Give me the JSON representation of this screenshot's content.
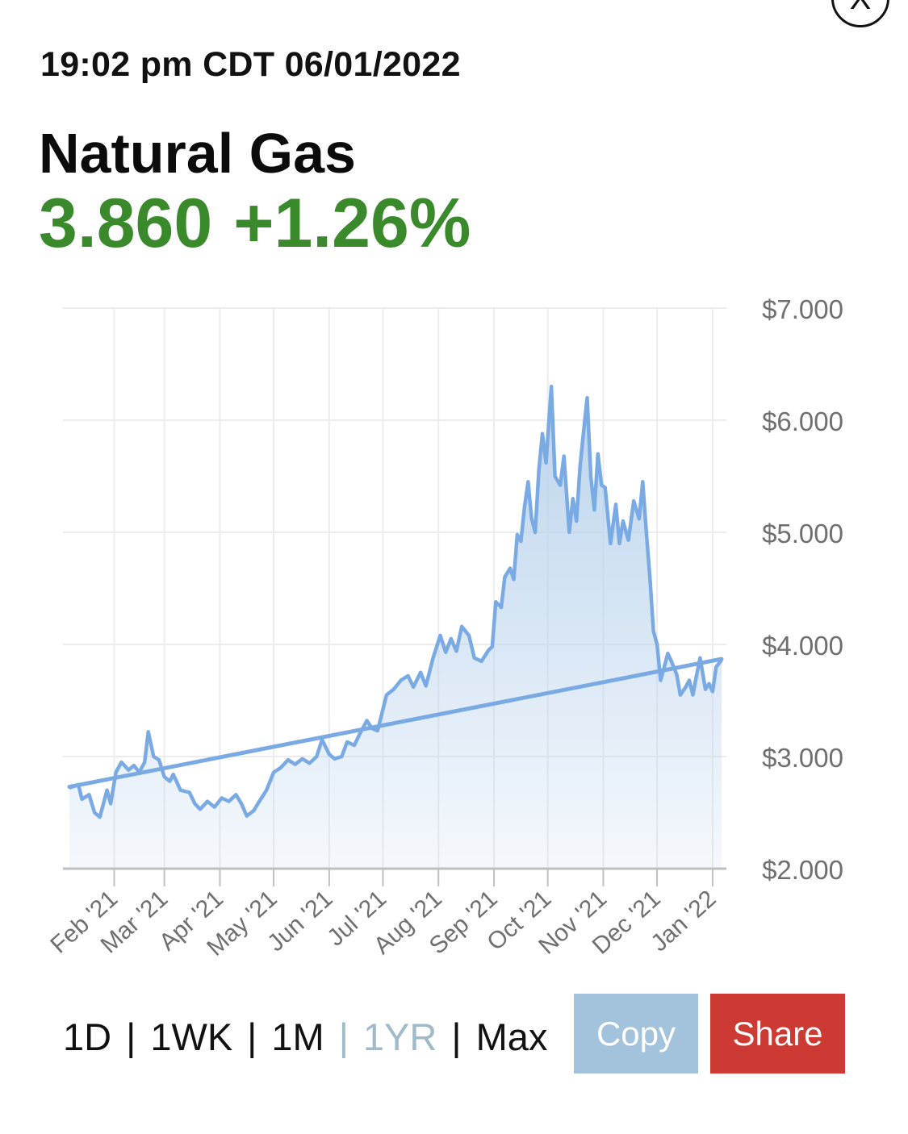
{
  "header": {
    "timestamp": "19:02 pm CDT 06/01/2022",
    "close_glyph": "X"
  },
  "quote": {
    "name": "Natural Gas",
    "price": "3.860",
    "change": "+1.26%",
    "color": "#3a8a2c"
  },
  "ranges": {
    "options": [
      "1D",
      "1WK",
      "1M",
      "1YR",
      "Max"
    ],
    "separator": "|",
    "selected": "1YR",
    "selected_color": "#9fbac8"
  },
  "actions": {
    "copy_label": "Copy",
    "copy_color": "#a3c3dc",
    "share_label": "Share",
    "share_color": "#cd3a33"
  },
  "colors": {
    "line": "#7aaae3",
    "fill": "#b8d2ec",
    "grid": "#ececec",
    "axis": "#bfbfbf"
  },
  "chart_data": {
    "type": "area",
    "yticks": [
      "$7.000",
      "$6.000",
      "$5.000",
      "$4.000",
      "$3.000",
      "$2.000"
    ],
    "ylim": [
      2,
      7
    ],
    "xlabels": [
      "Feb '21",
      "Mar '21",
      "Apr '21",
      "May '21",
      "Jun '21",
      "Jul '21",
      "Aug '21",
      "Sep '21",
      "Oct '21",
      "Nov '21",
      "Dec '21",
      "Jan '22"
    ],
    "xlim": [
      "2021-01-07",
      "2022-01-06"
    ],
    "series": [
      {
        "type": "line",
        "points": [
          [
            "2021-01-07",
            2.72
          ],
          [
            "2021-01-12",
            2.75
          ],
          [
            "2021-01-14",
            2.62
          ],
          [
            "2021-01-18",
            2.66
          ],
          [
            "2021-01-21",
            2.5
          ],
          [
            "2021-01-24",
            2.46
          ],
          [
            "2021-01-28",
            2.7
          ],
          [
            "2021-01-30",
            2.58
          ],
          [
            "2021-02-02",
            2.86
          ],
          [
            "2021-02-05",
            2.95
          ],
          [
            "2021-02-09",
            2.88
          ],
          [
            "2021-02-12",
            2.92
          ],
          [
            "2021-02-15",
            2.86
          ],
          [
            "2021-02-18",
            2.95
          ],
          [
            "2021-02-20",
            3.22
          ],
          [
            "2021-02-23",
            3.0
          ],
          [
            "2021-02-26",
            2.97
          ],
          [
            "2021-03-01",
            2.82
          ],
          [
            "2021-03-04",
            2.78
          ],
          [
            "2021-03-06",
            2.84
          ],
          [
            "2021-03-10",
            2.7
          ],
          [
            "2021-03-15",
            2.68
          ],
          [
            "2021-03-18",
            2.58
          ],
          [
            "2021-03-21",
            2.53
          ],
          [
            "2021-03-25",
            2.6
          ],
          [
            "2021-03-29",
            2.55
          ],
          [
            "2021-04-02",
            2.63
          ],
          [
            "2021-04-06",
            2.6
          ],
          [
            "2021-04-10",
            2.66
          ],
          [
            "2021-04-13",
            2.58
          ],
          [
            "2021-04-16",
            2.47
          ],
          [
            "2021-04-20",
            2.52
          ],
          [
            "2021-04-23",
            2.6
          ],
          [
            "2021-04-27",
            2.7
          ],
          [
            "2021-05-01",
            2.86
          ],
          [
            "2021-05-05",
            2.9
          ],
          [
            "2021-05-09",
            2.97
          ],
          [
            "2021-05-13",
            2.93
          ],
          [
            "2021-05-17",
            2.98
          ],
          [
            "2021-05-21",
            2.94
          ],
          [
            "2021-05-25",
            3.0
          ],
          [
            "2021-05-28",
            3.15
          ],
          [
            "2021-06-01",
            3.02
          ],
          [
            "2021-06-04",
            2.98
          ],
          [
            "2021-06-08",
            3.0
          ],
          [
            "2021-06-11",
            3.13
          ],
          [
            "2021-06-15",
            3.1
          ],
          [
            "2021-06-18",
            3.2
          ],
          [
            "2021-06-22",
            3.32
          ],
          [
            "2021-06-25",
            3.25
          ],
          [
            "2021-06-28",
            3.23
          ],
          [
            "2021-07-03",
            3.55
          ],
          [
            "2021-07-07",
            3.6
          ],
          [
            "2021-07-11",
            3.68
          ],
          [
            "2021-07-15",
            3.72
          ],
          [
            "2021-07-18",
            3.62
          ],
          [
            "2021-07-22",
            3.75
          ],
          [
            "2021-07-25",
            3.63
          ],
          [
            "2021-07-29",
            3.88
          ],
          [
            "2021-08-02",
            4.08
          ],
          [
            "2021-08-05",
            3.93
          ],
          [
            "2021-08-08",
            4.05
          ],
          [
            "2021-08-11",
            3.94
          ],
          [
            "2021-08-14",
            4.16
          ],
          [
            "2021-08-18",
            4.08
          ],
          [
            "2021-08-21",
            3.88
          ],
          [
            "2021-08-25",
            3.85
          ],
          [
            "2021-08-29",
            3.95
          ],
          [
            "2021-08-31",
            3.98
          ],
          [
            "2021-09-02",
            4.38
          ],
          [
            "2021-09-05",
            4.33
          ],
          [
            "2021-09-07",
            4.6
          ],
          [
            "2021-09-10",
            4.68
          ],
          [
            "2021-09-12",
            4.58
          ],
          [
            "2021-09-14",
            4.98
          ],
          [
            "2021-09-16",
            4.92
          ],
          [
            "2021-09-18",
            5.22
          ],
          [
            "2021-09-20",
            5.45
          ],
          [
            "2021-09-22",
            5.12
          ],
          [
            "2021-09-24",
            5.0
          ],
          [
            "2021-09-26",
            5.55
          ],
          [
            "2021-09-28",
            5.88
          ],
          [
            "2021-09-30",
            5.62
          ],
          [
            "2021-10-03",
            6.3
          ],
          [
            "2021-10-05",
            5.5
          ],
          [
            "2021-10-08",
            5.42
          ],
          [
            "2021-10-10",
            5.68
          ],
          [
            "2021-10-13",
            5.0
          ],
          [
            "2021-10-15",
            5.3
          ],
          [
            "2021-10-17",
            5.1
          ],
          [
            "2021-10-19",
            5.58
          ],
          [
            "2021-10-21",
            5.9
          ],
          [
            "2021-10-23",
            6.2
          ],
          [
            "2021-10-25",
            5.5
          ],
          [
            "2021-10-27",
            5.2
          ],
          [
            "2021-10-29",
            5.7
          ],
          [
            "2021-10-31",
            5.42
          ],
          [
            "2021-11-02",
            5.4
          ],
          [
            "2021-11-05",
            4.9
          ],
          [
            "2021-11-08",
            5.25
          ],
          [
            "2021-11-10",
            4.9
          ],
          [
            "2021-11-12",
            5.1
          ],
          [
            "2021-11-15",
            4.93
          ],
          [
            "2021-11-18",
            5.28
          ],
          [
            "2021-11-21",
            5.12
          ],
          [
            "2021-11-23",
            5.45
          ],
          [
            "2021-11-25",
            5.0
          ],
          [
            "2021-11-27",
            4.6
          ],
          [
            "2021-11-29",
            4.12
          ],
          [
            "2021-12-01",
            4.0
          ],
          [
            "2021-12-03",
            3.68
          ],
          [
            "2021-12-05",
            3.8
          ],
          [
            "2021-12-07",
            3.92
          ],
          [
            "2021-12-09",
            3.85
          ],
          [
            "2021-12-12",
            3.73
          ],
          [
            "2021-12-14",
            3.55
          ],
          [
            "2021-12-17",
            3.62
          ],
          [
            "2021-12-19",
            3.68
          ],
          [
            "2021-12-21",
            3.55
          ],
          [
            "2021-12-23",
            3.72
          ],
          [
            "2021-12-25",
            3.88
          ],
          [
            "2021-12-28",
            3.6
          ],
          [
            "2021-12-30",
            3.65
          ],
          [
            "2022-01-01",
            3.58
          ],
          [
            "2022-01-03",
            3.8
          ],
          [
            "2022-01-06",
            3.86
          ]
        ]
      },
      {
        "type": "trendline",
        "points": [
          [
            "2021-01-07",
            2.73
          ],
          [
            "2022-01-06",
            3.87
          ]
        ]
      }
    ]
  }
}
